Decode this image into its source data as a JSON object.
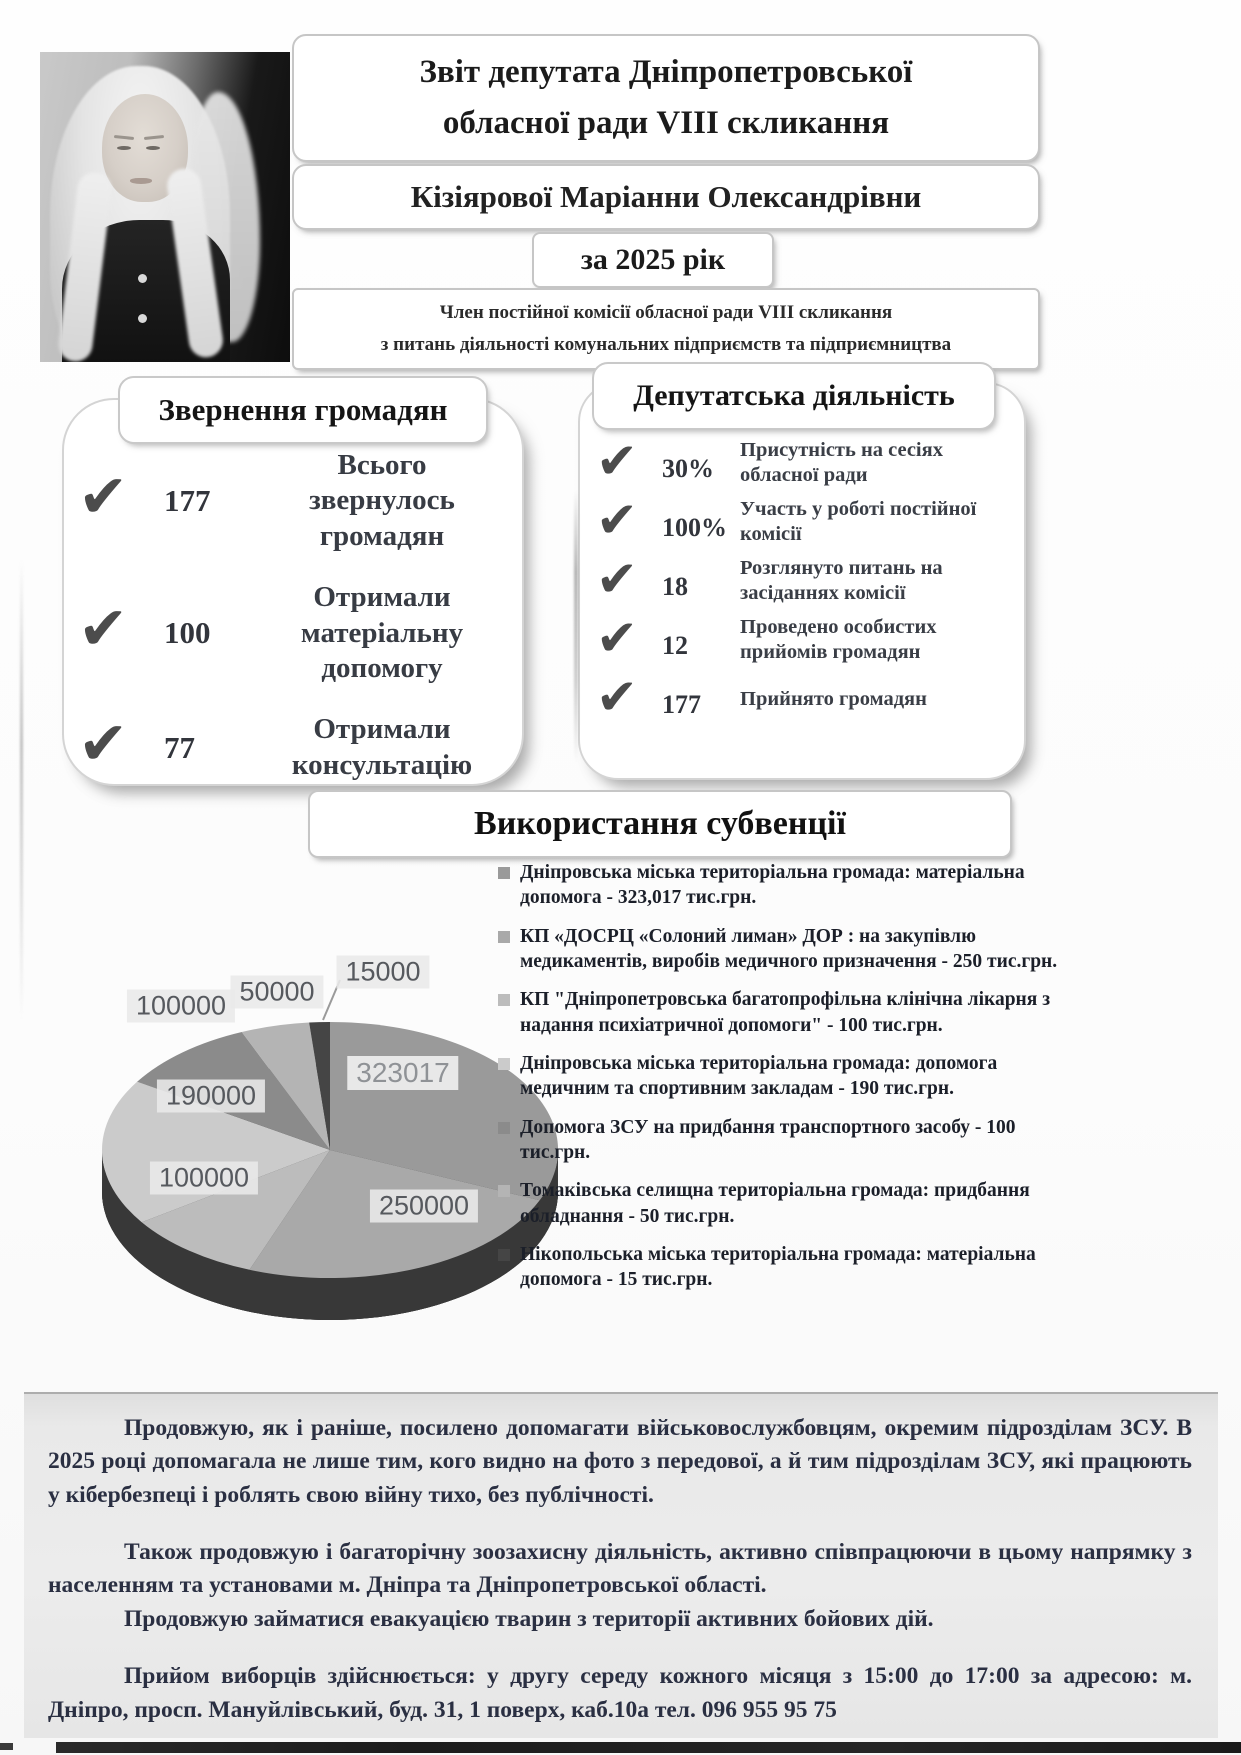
{
  "header": {
    "title_line1": "Звіт депутата Дніпропетровської",
    "title_line2": "обласної ради VIII скликання",
    "name": "Кізіярової Маріанни Олександрівни",
    "year": "за 2025 рік",
    "commission_line1": "Член постійної комісії обласної ради VIII скликання",
    "commission_line2": "з питань діяльності комунальних підприємств та підприємництва"
  },
  "citizens_card": {
    "title": "Звернення громадян",
    "items": [
      {
        "value": "177",
        "label": "Всього звернулось громадян"
      },
      {
        "value": "100",
        "label": "Отримали матеріальну допомогу"
      },
      {
        "value": "77",
        "label": "Отримали консультацію"
      }
    ]
  },
  "activity_card": {
    "title": "Депутатська діяльність",
    "items": [
      {
        "value": "30%",
        "label": "Присутність на сесіях обласної ради"
      },
      {
        "value": "100%",
        "label": "Участь у роботі постійної комісії"
      },
      {
        "value": "18",
        "label": "Розглянуто питань на засіданнях комісії"
      },
      {
        "value": "12",
        "label": "Проведено особистих прийомів громадян"
      },
      {
        "value": "177",
        "label": "Прийнято громадян"
      }
    ]
  },
  "subvention": {
    "title": "Використання субвенції"
  },
  "chart_data": {
    "type": "pie",
    "title": "Використання субвенції",
    "style": "3d-grayscale",
    "start_angle": -90,
    "direction": "clockwise",
    "units": "грн",
    "legend_position": "right",
    "slices": [
      {
        "value": 323017,
        "data_label": "323017",
        "color": "#9a9a9a",
        "legend": "Дніпровська міська територіальна громада: матеріальна допомога -  323,017 тис.грн."
      },
      {
        "value": 250000,
        "data_label": "250000",
        "color": "#a9a9a9",
        "legend": "КП «ДОСРЦ «Солоний лиман» ДОР : на закупівлю медикаментів, виробів медичного призначення - 250 тис.грн."
      },
      {
        "value": 100000,
        "data_label": "100000",
        "color": "#bcbcbc",
        "legend": "КП \"Дніпропетровська багатопрофільна клінічна лікарня з надання психіатричної допомоги\" - 100 тис.грн."
      },
      {
        "value": 190000,
        "data_label": "190000",
        "color": "#cbcbcb",
        "legend": "Дніпровська міська територіальна громада: допомога медичним та спортивним закладам - 190 тис.грн."
      },
      {
        "value": 100000,
        "data_label": "100000",
        "color": "#8b8b8b",
        "legend": "Допомога ЗСУ на придбання транспортного засобу - 100 тис.грн."
      },
      {
        "value": 50000,
        "data_label": "50000",
        "color": "#b4b4b4",
        "legend": "Томаківська селищна територіальна громада: придбання обладнання - 50 тис.грн."
      },
      {
        "value": 15000,
        "data_label": "15000",
        "color": "#454545",
        "legend": "Нікопольська міська територіальна громада: матеріальна допомога -  15 тис.грн."
      }
    ]
  },
  "paragraphs": {
    "p1": "Продовжую, як і раніше, посилено допомагати військовослужбовцям, окремим підрозділам ЗСУ. В 2025 році допомагала не лише тим, кого видно на фото з передової, а й тим підрозділам ЗСУ, які працюють у кібербезпеці і роблять свою війну тихо, без публічності.",
    "p2": "Також продовжую і багаторічну зоозахисну діяльність, активно співпрацюючи в цьому напрямку з населенням та установами м. Дніпра та Дніпропетровської області.",
    "p3": "Продовжую займатися евакуацією тварин з території активних бойових дій.",
    "p4": "Прийом виборців здійснюється: у другу середу кожного місяця з 15:00 до 17:00 за адресою: м. Дніпро, просп. Мануйлівський, буд. 31, 1 поверх, каб.10а тел. 096 955 95 75"
  }
}
